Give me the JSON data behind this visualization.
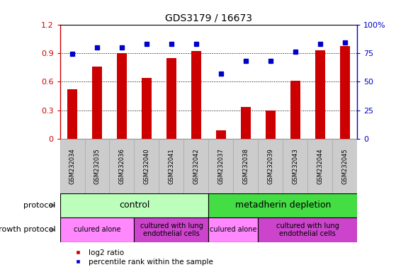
{
  "title": "GDS3179 / 16673",
  "samples": [
    "GSM232034",
    "GSM232035",
    "GSM232036",
    "GSM232040",
    "GSM232041",
    "GSM232042",
    "GSM232037",
    "GSM232038",
    "GSM232039",
    "GSM232043",
    "GSM232044",
    "GSM232045"
  ],
  "log2_ratio": [
    0.52,
    0.76,
    0.9,
    0.64,
    0.85,
    0.92,
    0.09,
    0.33,
    0.3,
    0.61,
    0.93,
    0.97
  ],
  "percentile": [
    74,
    80,
    80,
    83,
    83,
    83,
    57,
    68,
    68,
    76,
    83,
    84
  ],
  "bar_color": "#cc0000",
  "dot_color": "#0000cc",
  "ylim_left": [
    0,
    1.2
  ],
  "ylim_right": [
    0,
    100
  ],
  "yticks_left": [
    0,
    0.3,
    0.6,
    0.9,
    1.2
  ],
  "yticks_right": [
    0,
    25,
    50,
    75,
    100
  ],
  "ytick_labels_left": [
    "0",
    "0.3",
    "0.6",
    "0.9",
    "1.2"
  ],
  "ytick_labels_right": [
    "0",
    "25",
    "50",
    "75",
    "100%"
  ],
  "protocol_label": "protocol",
  "growth_protocol_label": "growth protocol",
  "protocol_spans": [
    {
      "label": "control",
      "start": 0,
      "end": 6,
      "color": "#bbffbb"
    },
    {
      "label": "metadherin depletion",
      "start": 6,
      "end": 12,
      "color": "#44dd44"
    }
  ],
  "growth_spans": [
    {
      "label": "culured alone",
      "start": 0,
      "end": 3,
      "color": "#ff88ff"
    },
    {
      "label": "cultured with lung\nendothelial cells",
      "start": 3,
      "end": 6,
      "color": "#cc44cc"
    },
    {
      "label": "culured alone",
      "start": 6,
      "end": 8,
      "color": "#ff88ff"
    },
    {
      "label": "cultured with lung\nendothelial cells",
      "start": 8,
      "end": 12,
      "color": "#cc44cc"
    }
  ],
  "legend_log2_color": "#cc0000",
  "legend_pct_color": "#0000cc",
  "bg_color": "#ffffff",
  "sample_bg_color": "#cccccc",
  "bar_width": 0.4
}
